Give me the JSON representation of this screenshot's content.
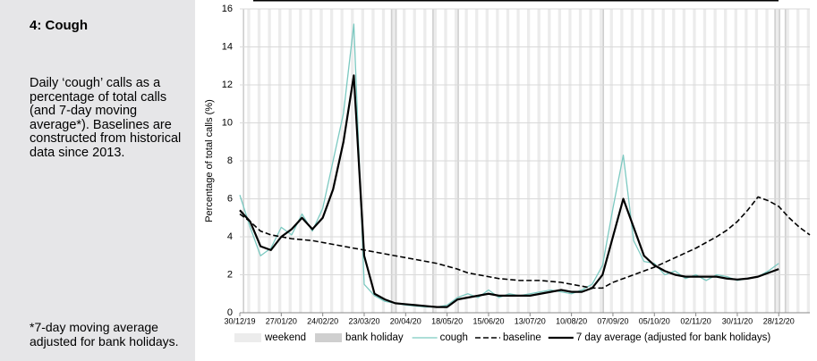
{
  "panel": {
    "title": "4: Cough",
    "description": "Daily ‘cough’ calls as a percentage of total calls (and 7-day moving average*). Baselines are constructed from historical data since 2013.",
    "footnote": "*7-day moving average adjusted for bank holidays."
  },
  "chart_data": {
    "type": "line",
    "y_label": "Percentage of total calls (%)",
    "x": [
      "30/12/19",
      "06/01/20",
      "13/01/20",
      "20/01/20",
      "27/01/20",
      "03/02/20",
      "10/02/20",
      "17/02/20",
      "24/02/20",
      "02/03/20",
      "09/03/20",
      "16/03/20",
      "23/03/20",
      "30/03/20",
      "06/04/20",
      "13/04/20",
      "20/04/20",
      "27/04/20",
      "04/05/20",
      "11/05/20",
      "18/05/20",
      "25/05/20",
      "01/06/20",
      "08/06/20",
      "15/06/20",
      "22/06/20",
      "29/06/20",
      "06/07/20",
      "13/07/20",
      "20/07/20",
      "27/07/20",
      "03/08/20",
      "10/08/20",
      "17/08/20",
      "24/08/20",
      "31/08/20",
      "07/09/20",
      "14/09/20",
      "21/09/20",
      "28/09/20",
      "05/10/20",
      "12/10/20",
      "19/10/20",
      "26/10/20",
      "02/11/20",
      "09/11/20",
      "16/11/20",
      "23/11/20",
      "30/11/20",
      "07/12/20",
      "14/12/20",
      "21/12/20",
      "28/12/20",
      "04/01/21",
      "11/01/21",
      "18/01/21"
    ],
    "xlim": [
      "30/12/19",
      "18/01/21"
    ],
    "xticks": [
      "30/12/19",
      "27/01/20",
      "24/02/20",
      "23/03/20",
      "20/04/20",
      "18/05/20",
      "15/06/20",
      "13/07/20",
      "10/08/20",
      "07/09/20",
      "05/10/20",
      "02/11/20",
      "30/11/20",
      "28/12/20"
    ],
    "ylim": [
      0,
      16
    ],
    "yticks": [
      0,
      2,
      4,
      6,
      8,
      10,
      12,
      14,
      16
    ],
    "grid": true,
    "weekend_label": "weekend",
    "weekend_color": "#ececec",
    "bank_holiday_label": "bank holiday",
    "bank_holiday_color": "#cfcfcf",
    "bank_holidays": [
      "01/01/20",
      "10/04/20",
      "13/04/20",
      "08/05/20",
      "25/05/20",
      "31/08/20",
      "25/12/20",
      "28/12/20",
      "01/01/21"
    ],
    "series": [
      {
        "name": "cough",
        "color": "#7cc9c1",
        "width": 1.3,
        "dash": "solid",
        "values": [
          6.2,
          4.5,
          3.0,
          3.4,
          4.5,
          4.1,
          5.2,
          4.3,
          5.5,
          8.0,
          10.5,
          15.2,
          1.5,
          0.9,
          0.6,
          0.5,
          0.4,
          0.35,
          0.3,
          0.3,
          0.4,
          0.8,
          1.0,
          0.8,
          1.2,
          0.8,
          1.0,
          0.9,
          1.0,
          1.1,
          1.2,
          1.1,
          1.0,
          1.2,
          1.5,
          2.5,
          5.5,
          8.3,
          3.8,
          2.7,
          2.6,
          2.0,
          2.2,
          1.8,
          2.0,
          1.7,
          2.0,
          1.9,
          1.7,
          1.8,
          1.9,
          2.2,
          2.6,
          null,
          null,
          null
        ]
      },
      {
        "name": "baseline",
        "color": "#000000",
        "width": 1.6,
        "dash": "dashed",
        "values": [
          5.2,
          4.8,
          4.3,
          4.1,
          4.0,
          3.9,
          3.85,
          3.8,
          3.7,
          3.6,
          3.5,
          3.4,
          3.3,
          3.2,
          3.1,
          3.0,
          2.9,
          2.8,
          2.7,
          2.6,
          2.45,
          2.3,
          2.1,
          2.0,
          1.9,
          1.8,
          1.75,
          1.7,
          1.7,
          1.7,
          1.65,
          1.6,
          1.5,
          1.4,
          1.3,
          1.3,
          1.6,
          1.8,
          2.0,
          2.2,
          2.4,
          2.65,
          2.9,
          3.15,
          3.4,
          3.7,
          4.0,
          4.35,
          4.8,
          5.4,
          6.1,
          5.9,
          5.6,
          5.0,
          4.5,
          4.1
        ]
      },
      {
        "name": "7 day average (adjusted for bank holidays)",
        "color": "#000000",
        "width": 2.2,
        "dash": "solid",
        "values": [
          5.4,
          4.8,
          3.5,
          3.3,
          4.0,
          4.4,
          5.0,
          4.4,
          5.0,
          6.5,
          9.0,
          12.5,
          3.0,
          1.0,
          0.7,
          0.5,
          0.45,
          0.4,
          0.35,
          0.3,
          0.3,
          0.7,
          0.8,
          0.9,
          1.0,
          0.9,
          0.9,
          0.9,
          0.9,
          1.0,
          1.1,
          1.2,
          1.1,
          1.1,
          1.3,
          2.0,
          4.0,
          6.0,
          4.5,
          3.0,
          2.5,
          2.2,
          2.0,
          1.9,
          1.9,
          1.9,
          1.9,
          1.8,
          1.75,
          1.8,
          1.9,
          2.1,
          2.3,
          null,
          null,
          null
        ]
      }
    ]
  }
}
